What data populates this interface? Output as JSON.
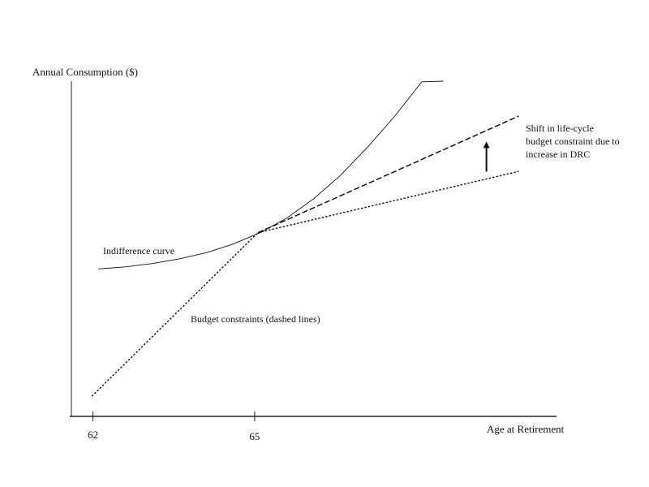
{
  "chart_data": {
    "type": "line",
    "title": "",
    "xlabel": "Age at Retirement",
    "ylabel": "Annual Consumption ($)",
    "x_ticks": [
      {
        "value": 62,
        "label": "62"
      },
      {
        "value": 65,
        "label": "65"
      }
    ],
    "xlim": [
      61.6,
      70.6
    ],
    "ylim": [
      0,
      10
    ],
    "grid": false,
    "legend": "none",
    "series": [
      {
        "key": "indifference",
        "style": "solid",
        "x": [
          62.1,
          62.6,
          63.1,
          63.6,
          64.1,
          64.6,
          65.1,
          65.6,
          66.1,
          66.6,
          67.1,
          67.6,
          68.1,
          68.5
        ],
        "y": [
          4.4,
          4.46,
          4.56,
          4.7,
          4.88,
          5.14,
          5.48,
          5.92,
          6.5,
          7.2,
          8.04,
          8.96,
          9.98,
          10.0
        ]
      },
      {
        "key": "budget-steep",
        "style": "dotted",
        "x": [
          61.98,
          65.06
        ],
        "y": [
          0.6,
          5.48
        ]
      },
      {
        "key": "budget-original",
        "style": "dotted",
        "x": [
          65.06,
          69.9
        ],
        "y": [
          5.48,
          7.31
        ]
      },
      {
        "key": "budget-shifted",
        "style": "dashed",
        "x": [
          65.06,
          69.9
        ],
        "y": [
          5.48,
          8.96
        ]
      }
    ],
    "annotations": [
      {
        "key": "indifference",
        "text": "Indifference curve"
      },
      {
        "key": "budget",
        "text": "Budget constraints (dashed lines)"
      },
      {
        "key": "shift",
        "lines": [
          "Shift in life-cycle",
          "budget constraint due to",
          "increase in DRC"
        ]
      }
    ],
    "arrow": {
      "x": 69.3,
      "y_from": 7.3,
      "y_to": 8.2
    }
  }
}
